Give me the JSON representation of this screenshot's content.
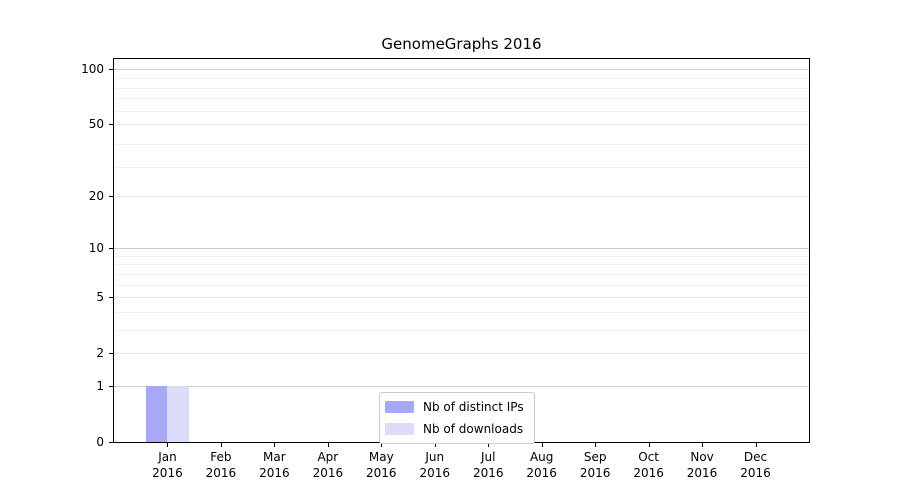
{
  "chart_data": {
    "type": "bar",
    "title": "GenomeGraphs 2016",
    "x": {
      "months": [
        "Jan",
        "Feb",
        "Mar",
        "Apr",
        "May",
        "Jun",
        "Jul",
        "Aug",
        "Sep",
        "Oct",
        "Nov",
        "Dec"
      ],
      "year": "2016"
    },
    "series": [
      {
        "name": "Nb of distinct IPs",
        "color": "#a8a8f8",
        "values": [
          1,
          0,
          0,
          0,
          0,
          0,
          0,
          0,
          0,
          0,
          0,
          0
        ]
      },
      {
        "name": "Nb of downloads",
        "color": "#dbdbfa",
        "values": [
          1,
          0,
          0,
          0,
          0,
          0,
          0,
          0,
          0,
          0,
          0,
          0
        ]
      }
    ],
    "y_axis": {
      "tick_labels": [
        0,
        1,
        2,
        5,
        10,
        20,
        50,
        100
      ],
      "scale": "log10(1+value)",
      "range": [
        0,
        116
      ],
      "decade_gridlines": [
        1,
        10,
        100
      ],
      "minor_gridlines": [
        3,
        4,
        6,
        7,
        8,
        9,
        29,
        39,
        59,
        69,
        79,
        89
      ],
      "grid": true
    },
    "legend": {
      "position": "lower center",
      "entries": [
        "Nb of distinct IPs",
        "Nb of downloads"
      ]
    }
  },
  "colors": {
    "bar_distinct_ips": "#a8a8f8",
    "bar_downloads": "#dbdbfa",
    "grid_major": "#cccccc",
    "grid_labeled": "#e7e7e7",
    "grid_minor": "#f0f0f0",
    "spine": "#000000",
    "text": "#000000",
    "legend_border": "#cccccc",
    "background": "#ffffff"
  }
}
